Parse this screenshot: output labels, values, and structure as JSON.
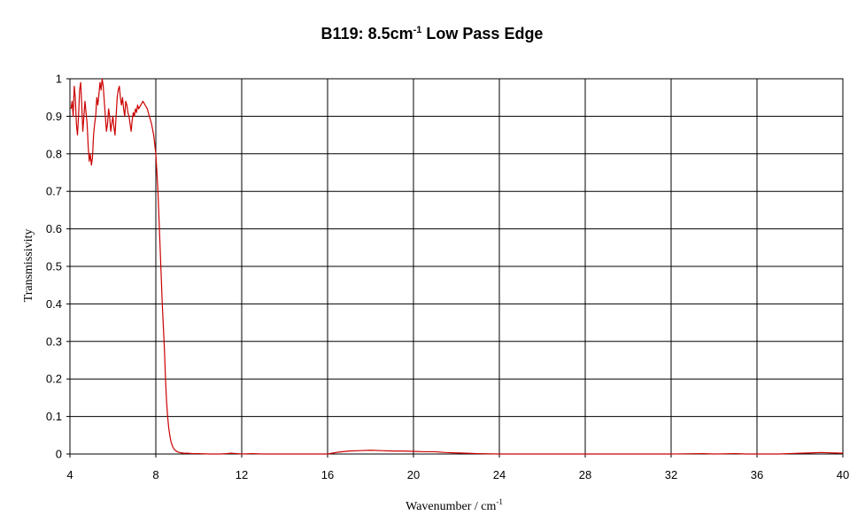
{
  "chart_data": {
    "type": "line",
    "title": "B119: 8.5cm",
    "title_sup": "-1",
    "title_suffix": " Low Pass Edge",
    "xlabel": "Wavenumber / cm",
    "xlabel_sup": "-1",
    "ylabel": "Transmissivity",
    "xlim": [
      4,
      40
    ],
    "ylim": [
      0,
      1
    ],
    "x_ticks": [
      4,
      8,
      12,
      16,
      20,
      24,
      28,
      32,
      36,
      40
    ],
    "y_ticks": [
      0,
      0.1,
      0.2,
      0.3,
      0.4,
      0.5,
      0.6,
      0.7,
      0.8,
      0.9,
      1
    ],
    "y_tick_labels": [
      "0",
      "0.1",
      "0.2",
      "0.3",
      "0.4",
      "0.5",
      "0.6",
      "0.7",
      "0.8",
      "0.9",
      "1"
    ],
    "x_tick_labels": [
      "4",
      "8",
      "12",
      "16",
      "20",
      "24",
      "28",
      "32",
      "36",
      "40"
    ],
    "grid": true,
    "legend": "none",
    "series_color": "#cc0000",
    "series": [
      {
        "x": [
          4.05,
          4.1,
          4.15,
          4.2,
          4.25,
          4.3,
          4.35,
          4.4,
          4.45,
          4.5,
          4.55,
          4.6,
          4.65,
          4.7,
          4.75,
          4.8,
          4.85,
          4.9,
          4.95,
          5.0,
          5.05,
          5.1,
          5.15,
          5.2,
          5.25,
          5.3,
          5.35,
          5.4,
          5.45,
          5.5,
          5.55,
          5.6,
          5.65,
          5.7,
          5.75,
          5.8,
          5.85,
          5.9,
          5.95,
          6.0,
          6.05,
          6.1,
          6.15,
          6.2,
          6.25,
          6.3,
          6.35,
          6.4,
          6.45,
          6.5,
          6.55,
          6.6,
          6.65,
          6.7,
          6.75,
          6.8,
          6.85,
          6.9,
          6.95,
          7.0,
          7.05,
          7.1,
          7.15,
          7.2,
          7.3,
          7.4,
          7.5,
          7.6,
          7.7,
          7.8,
          7.9,
          8.0,
          8.1,
          8.2,
          8.3,
          8.4,
          8.45,
          8.5,
          8.55,
          8.6,
          8.65,
          8.7,
          8.75,
          8.8,
          8.85,
          8.9,
          8.95,
          9.0,
          9.1,
          9.2,
          9.3,
          9.5,
          9.7,
          10.0,
          10.5,
          11.0,
          11.3,
          11.5,
          11.8,
          12.0,
          12.5,
          13.0,
          14.0,
          15.0,
          16.0,
          16.5,
          17.0,
          17.5,
          18.0,
          18.5,
          19.0,
          19.5,
          20.0,
          20.5,
          21.0,
          21.5,
          22.0,
          22.5,
          23.0,
          24.0,
          26.0,
          28.0,
          30.0,
          32.0,
          33.5,
          34.0,
          35.0,
          35.5,
          36.0,
          37.0,
          37.5,
          38.0,
          38.5,
          39.0,
          39.5,
          40.0
        ],
        "y": [
          0.92,
          0.94,
          0.9,
          0.98,
          0.95,
          0.88,
          0.85,
          0.9,
          0.97,
          0.99,
          0.93,
          0.86,
          0.9,
          0.94,
          0.91,
          0.88,
          0.82,
          0.78,
          0.8,
          0.77,
          0.79,
          0.85,
          0.88,
          0.9,
          0.95,
          0.93,
          0.96,
          0.99,
          0.97,
          1.0,
          0.98,
          0.94,
          0.9,
          0.86,
          0.88,
          0.92,
          0.9,
          0.86,
          0.88,
          0.9,
          0.87,
          0.85,
          0.9,
          0.95,
          0.97,
          0.98,
          0.95,
          0.93,
          0.95,
          0.92,
          0.9,
          0.94,
          0.93,
          0.91,
          0.9,
          0.88,
          0.86,
          0.89,
          0.91,
          0.9,
          0.92,
          0.91,
          0.93,
          0.92,
          0.93,
          0.94,
          0.93,
          0.92,
          0.9,
          0.88,
          0.85,
          0.8,
          0.7,
          0.55,
          0.4,
          0.28,
          0.2,
          0.14,
          0.1,
          0.07,
          0.05,
          0.035,
          0.025,
          0.018,
          0.013,
          0.01,
          0.008,
          0.006,
          0.004,
          0.003,
          0.002,
          0.002,
          0.001,
          0.001,
          0.0,
          0.0,
          0.001,
          0.002,
          0.001,
          0.0,
          0.001,
          0.0,
          0.0,
          0.0,
          0.0,
          0.005,
          0.008,
          0.009,
          0.01,
          0.009,
          0.008,
          0.008,
          0.007,
          0.006,
          0.006,
          0.004,
          0.003,
          0.002,
          0.001,
          0.0,
          0.0,
          0.0,
          0.0,
          0.0,
          0.001,
          0.0,
          0.001,
          0.0,
          0.0,
          0.0,
          0.001,
          0.002,
          0.003,
          0.004,
          0.003,
          0.002
        ]
      }
    ]
  }
}
